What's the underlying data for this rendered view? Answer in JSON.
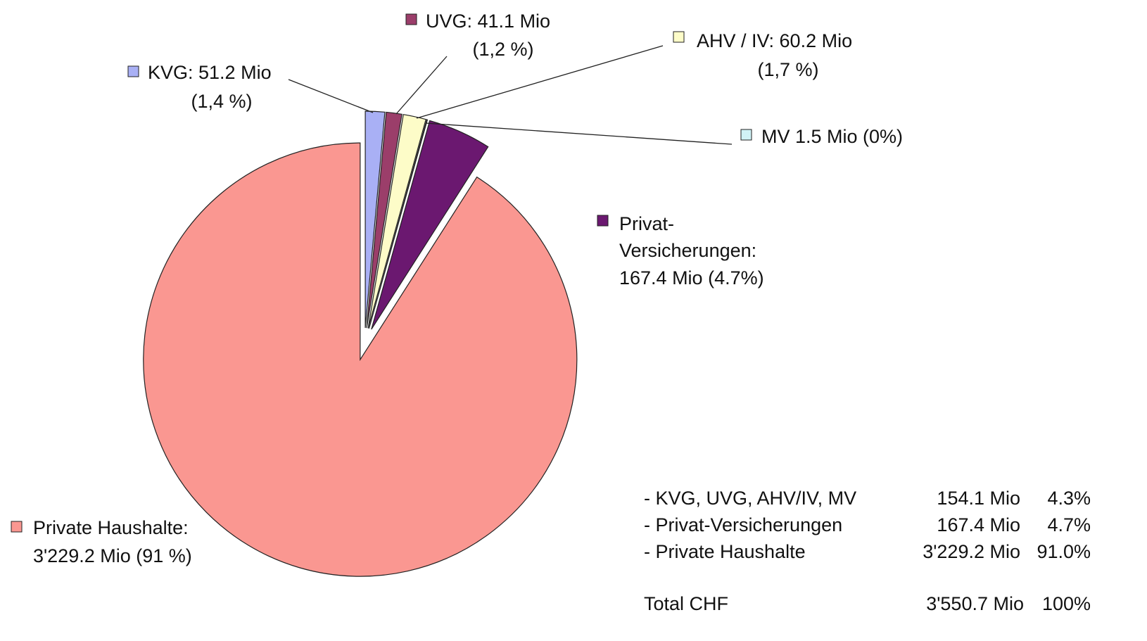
{
  "chart_data": {
    "type": "pie",
    "categories": [
      "KVG",
      "UVG",
      "AHV / IV",
      "MV",
      "Privat-Versicherungen",
      "Private Haushalte"
    ],
    "values": [
      51.2,
      41.1,
      60.2,
      1.5,
      167.4,
      3229.2
    ],
    "value_labels": [
      [
        "KVG: 51.2 Mio",
        "(1,4 %)"
      ],
      [
        "UVG: 41.1 Mio",
        "(1,2 %)"
      ],
      [
        "AHV / IV: 60.2 Mio",
        "(1,7 %)"
      ],
      [
        "MV 1.5 Mio (0%)"
      ],
      [
        "Privat-",
        "Versicherungen:",
        "167.4 Mio (4.7%)"
      ],
      [
        "Private Haushalte:",
        "3'229.2 Mio (91 %)"
      ]
    ],
    "colors": [
      "#a9b0f5",
      "#9b3e6a",
      "#fdfcc8",
      "#d0f2f6",
      "#6b1870",
      "#fa9791"
    ]
  },
  "table": {
    "rows": [
      [
        "- KVG, UVG, AHV/IV, MV",
        "154.1 Mio",
        "4.3%"
      ],
      [
        "- Privat-Versicherungen",
        "167.4 Mio",
        "4.7%"
      ],
      [
        "- Private Haushalte",
        "3'229.2 Mio",
        "91.0%"
      ]
    ],
    "total": [
      "Total CHF",
      "3'550.7 Mio",
      "100%"
    ]
  }
}
